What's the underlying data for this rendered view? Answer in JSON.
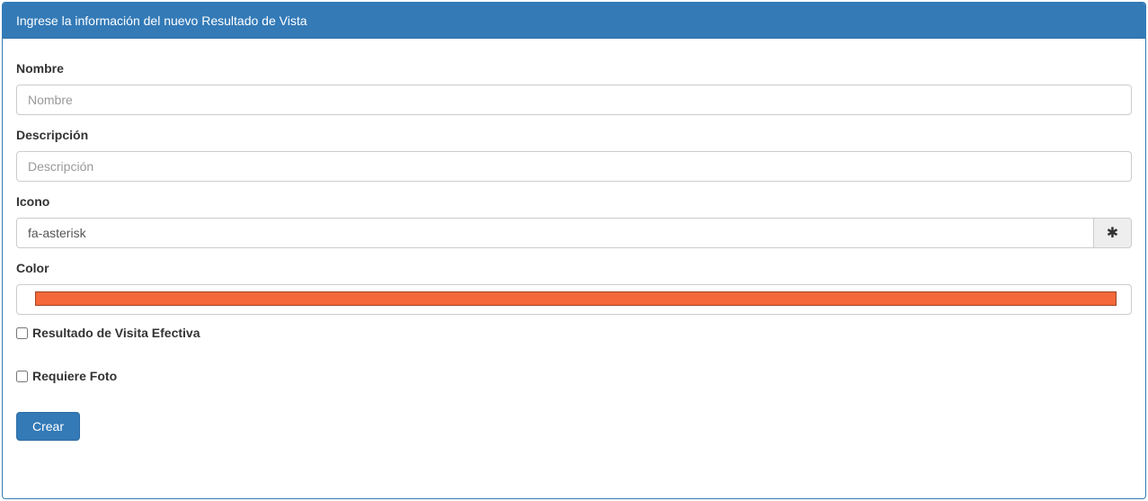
{
  "panel": {
    "title": "Ingrese la información del nuevo Resultado de Vista"
  },
  "form": {
    "nombre": {
      "label": "Nombre",
      "placeholder": "Nombre",
      "value": ""
    },
    "descripcion": {
      "label": "Descripción",
      "placeholder": "Descripción",
      "value": ""
    },
    "icono": {
      "label": "Icono",
      "value": "fa-asterisk",
      "addon_icon": "asterisk-icon",
      "addon_glyph": "✱"
    },
    "color": {
      "label": "Color",
      "value": "#f4683a"
    },
    "checkboxes": [
      {
        "label": "Resultado de Visita Efectiva",
        "checked": false
      },
      {
        "label": "Requiere Foto",
        "checked": false
      }
    ],
    "submit_label": "Crear"
  },
  "colors": {
    "primary": "#337ab7",
    "primary_border": "#2e6da4",
    "panel_border": "#337ab7",
    "header_text": "#ffffff",
    "input_border": "#cccccc",
    "input_text": "#555555",
    "placeholder_text": "#999999",
    "addon_background": "#eeeeee",
    "color_swatch": "#f4683a"
  }
}
